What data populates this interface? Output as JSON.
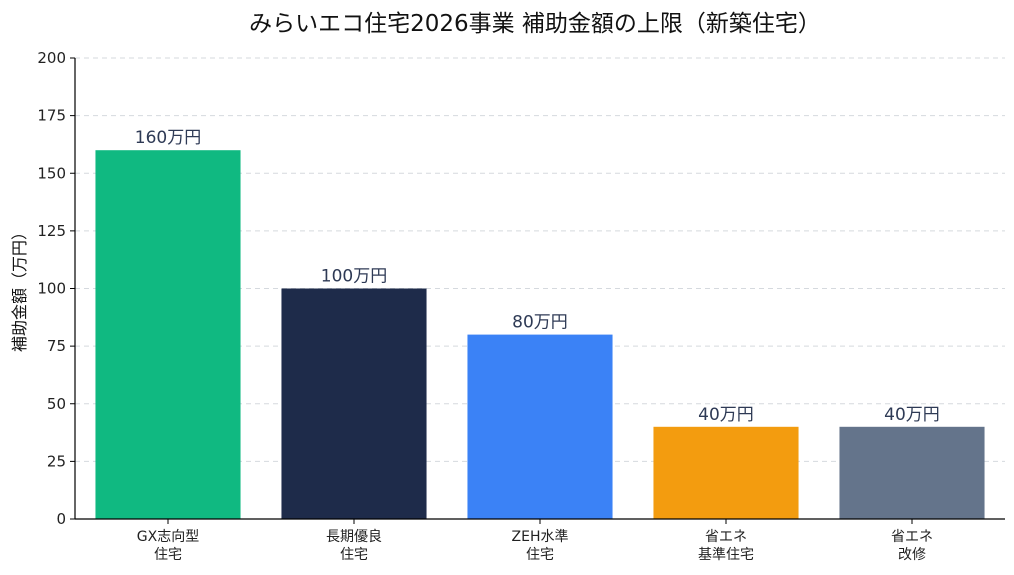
{
  "chart_data": {
    "type": "bar",
    "title": "みらいエコ住宅2026事業 補助金額の上限（新築住宅）",
    "ylabel": "補助金額（万円）",
    "xlabel": "",
    "ylim": [
      0,
      200
    ],
    "yticks": [
      0,
      25,
      50,
      75,
      100,
      125,
      150,
      175,
      200
    ],
    "grid": true,
    "categories": [
      [
        "GX志向型",
        "住宅"
      ],
      [
        "長期優良",
        "住宅"
      ],
      [
        "ZEH水準",
        "住宅"
      ],
      [
        "省エネ",
        "基準住宅"
      ],
      [
        "省エネ",
        "改修"
      ]
    ],
    "values": [
      160,
      100,
      80,
      40,
      40
    ],
    "data_labels": [
      "160万円",
      "100万円",
      "80万円",
      "40万円",
      "40万円"
    ],
    "colors": [
      "#10b981",
      "#1e2b4a",
      "#3b82f6",
      "#f39c0f",
      "#64748b"
    ]
  }
}
